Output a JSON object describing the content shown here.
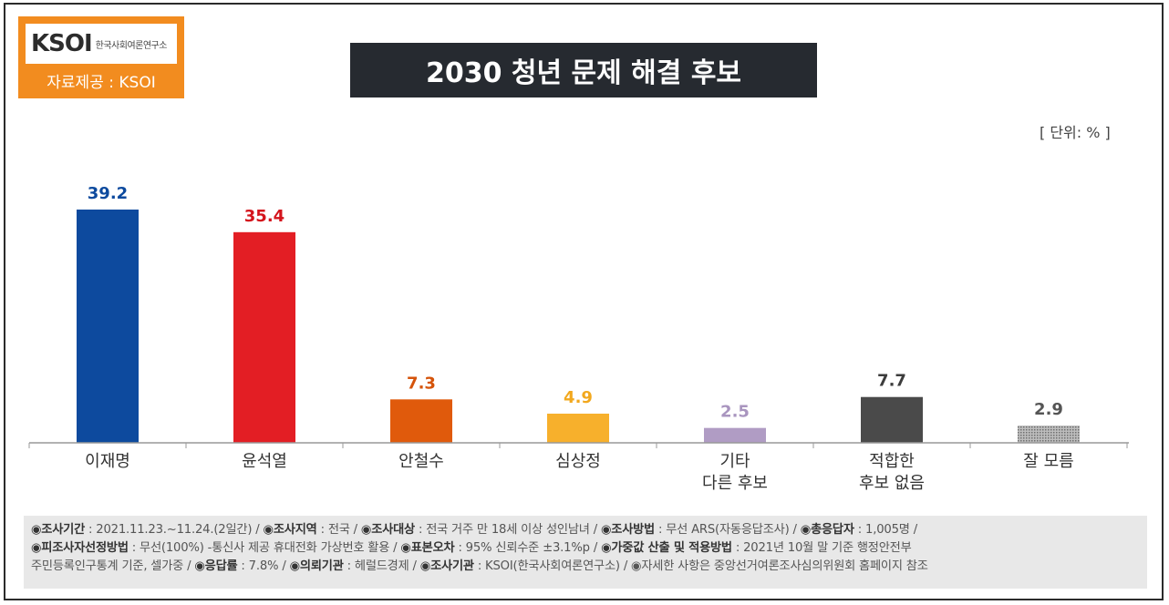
{
  "logo": {
    "mark": "KSOI",
    "sub": "한국사회여론연구소",
    "source": "자료제공 : KSOI"
  },
  "title": "2030 청년 문제 해결 후보",
  "unit": "[ 단위: % ]",
  "chart_data": {
    "type": "bar",
    "title": "2030 청년 문제 해결 후보",
    "categories": [
      [
        "이재명"
      ],
      [
        "윤석열"
      ],
      [
        "안철수"
      ],
      [
        "심상정"
      ],
      [
        "기타",
        "다른 후보"
      ],
      [
        "적합한",
        "후보 없음"
      ],
      [
        "잘 모름"
      ]
    ],
    "values": [
      39.2,
      35.4,
      7.3,
      4.9,
      2.5,
      7.7,
      2.9
    ],
    "labels": [
      "39.2",
      "35.4",
      "7.3",
      "4.9",
      "2.5",
      "7.7",
      "2.9"
    ],
    "colors": [
      "#0d4a9e",
      "#e31e24",
      "#e05a0c",
      "#f7b02c",
      "#b09cc4",
      "#4a4a4a",
      "#8c8c8c"
    ],
    "label_colors": [
      "#0d4a9e",
      "#d4141c",
      "#d5540b",
      "#f2a81e",
      "#a995bf",
      "#3c3c3c",
      "#555555"
    ],
    "ylabel": "%",
    "ylim": [
      0,
      45
    ],
    "grid": false
  },
  "footer": {
    "line1": [
      {
        "k": "◉조사기간",
        "v": " : 2021.11.23.~11.24.(2일간)  / "
      },
      {
        "k": "◉조사지역",
        "v": " : 전국 / "
      },
      {
        "k": "◉조사대상",
        "v": " : 전국 거주 만 18세 이상 성인남녀 / "
      },
      {
        "k": "◉조사방법",
        "v": " : 무선 ARS(자동응답조사) / "
      },
      {
        "k": "◉총응답자",
        "v": " : 1,005명 /"
      }
    ],
    "line2": [
      {
        "k": "◉피조사자선정방법",
        "v": " : 무선(100%) -통신사 제공 휴대전화 가상번호 활용 / "
      },
      {
        "k": "◉표본오차",
        "v": " : 95% 신뢰수준 ±3.1%p / "
      },
      {
        "k": "◉가중값 산출 및 적용방법",
        "v": " : 2021년 10월 말 기준 행정안전부"
      }
    ],
    "line3": [
      {
        "k": "",
        "v": "주민등록인구통계 기준, 셀가중 / "
      },
      {
        "k": "◉응답률",
        "v": " : 7.8% / "
      },
      {
        "k": "◉의뢰기관",
        "v": " : 헤럴드경제 / "
      },
      {
        "k": "◉조사기관",
        "v": " : KSOI(한국사회여론연구소) / ◉자세한 사항은 중앙선거여론조사심의위원회 홈페이지 참조"
      }
    ]
  }
}
